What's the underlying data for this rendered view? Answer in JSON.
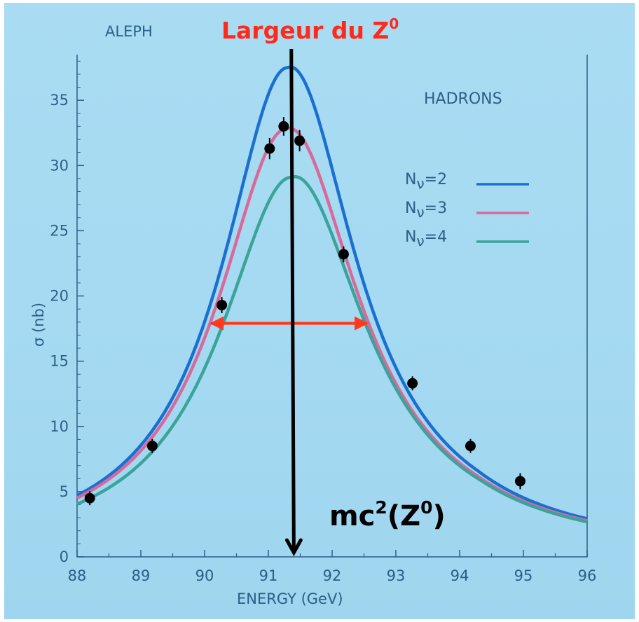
{
  "annotations": {
    "title": "Largeur du Z",
    "title_sup": "0",
    "mass_main": "mc",
    "mass_sup1": "2",
    "mass_paren_open": "(Z",
    "mass_sup2": "0",
    "mass_paren_close": ")"
  },
  "chart_data": {
    "type": "line",
    "experiment_label": "ALEPH",
    "channel_label": "HADRONS",
    "xlabel": "ENERGY (GeV)",
    "ylabel": "σ (nb)",
    "xlim": [
      88,
      96
    ],
    "ylim": [
      0,
      38.5
    ],
    "x_ticks": [
      88,
      89,
      90,
      91,
      92,
      93,
      94,
      95,
      96
    ],
    "y_ticks": [
      0,
      5,
      10,
      15,
      20,
      25,
      30,
      35
    ],
    "grid": false,
    "legend_position": "right",
    "series": [
      {
        "name": "Nν=2",
        "legend_base": "N",
        "legend_sub": "ν",
        "legend_tail": "=2",
        "color": "#1a6fd0",
        "peak_x": 91.3,
        "peak_y": 37.5,
        "gamma": 2.5
      },
      {
        "name": "Nν=3",
        "legend_base": "N",
        "legend_sub": "ν",
        "legend_tail": "=3",
        "color": "#d9699a",
        "peak_x": 91.28,
        "peak_y": 32.8,
        "gamma": 2.62
      },
      {
        "name": "Nν=4",
        "legend_base": "N",
        "legend_sub": "ν",
        "legend_tail": "=4",
        "color": "#3aa39a",
        "peak_x": 91.36,
        "peak_y": 29.1,
        "gamma": 2.7
      }
    ],
    "data_points": [
      {
        "x": 88.2,
        "y": 4.5,
        "err": 0.3
      },
      {
        "x": 89.18,
        "y": 8.5,
        "err": 0.3
      },
      {
        "x": 90.27,
        "y": 19.3,
        "err": 0.4
      },
      {
        "x": 91.02,
        "y": 31.3,
        "err": 0.6
      },
      {
        "x": 91.24,
        "y": 33.0,
        "err": 0.5
      },
      {
        "x": 91.49,
        "y": 31.9,
        "err": 0.6
      },
      {
        "x": 92.18,
        "y": 23.2,
        "err": 0.4
      },
      {
        "x": 93.26,
        "y": 13.3,
        "err": 0.3
      },
      {
        "x": 94.17,
        "y": 8.5,
        "err": 0.3
      },
      {
        "x": 94.95,
        "y": 5.8,
        "err": 0.4
      }
    ],
    "width_arrow": {
      "x_start": 90.1,
      "x_end": 92.55,
      "y": 17.9,
      "color": "#ff3a1c"
    },
    "mass_line": {
      "x_top": 91.36,
      "x_bottom": 91.4,
      "y_top": 40.0,
      "y_bottom": 0.0,
      "color": "#000000"
    }
  }
}
